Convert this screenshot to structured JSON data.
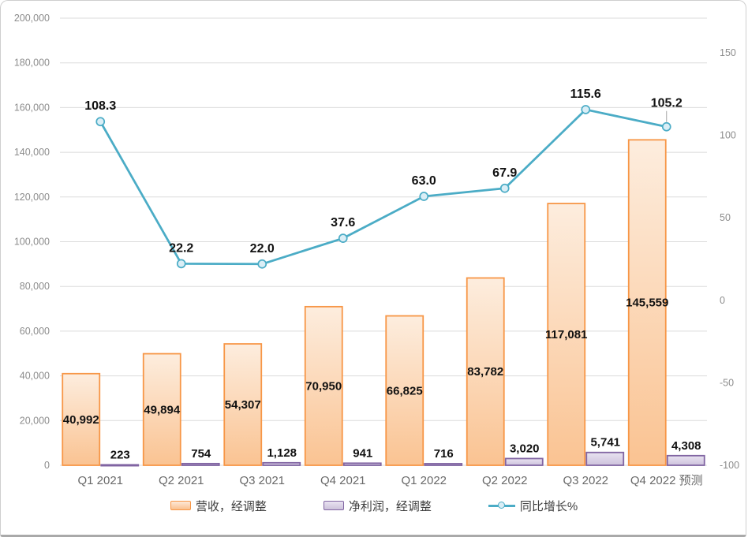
{
  "chart_data": {
    "type": "combo-bar-line",
    "categories": [
      "Q1 2021",
      "Q2 2021",
      "Q3 2021",
      "Q4 2021",
      "Q1 2022",
      "Q2 2022",
      "Q3 2022",
      "Q4 2022 预测"
    ],
    "series": [
      {
        "name": "营收，经调整",
        "type": "bar",
        "axis": "left",
        "values": [
          40992,
          49894,
          54307,
          70950,
          66825,
          83782,
          117081,
          145559
        ],
        "labels": [
          "40,992",
          "49,894",
          "54,307",
          "70,950",
          "66,825",
          "83,782",
          "117,081",
          "145,559"
        ],
        "fill_top": "#FDEDDE",
        "fill_bottom": "#FAC392",
        "border": "#F79646"
      },
      {
        "name": "净利润，经调整",
        "type": "bar",
        "axis": "left",
        "values": [
          223,
          754,
          1128,
          941,
          716,
          3020,
          5741,
          4308
        ],
        "labels": [
          "223",
          "754",
          "1,128",
          "941",
          "716",
          "3,020",
          "5,741",
          "4,308"
        ],
        "fill_top": "#E9E3F1",
        "fill_bottom": "#CDC2DC",
        "border": "#8064A2"
      },
      {
        "name": "同比增长%",
        "type": "line",
        "axis": "right",
        "values": [
          108.3,
          22.2,
          22.0,
          37.6,
          63.0,
          67.9,
          115.6,
          105.2
        ],
        "labels": [
          "108.3",
          "22.2",
          "22.0",
          "37.6",
          "63.0",
          "67.9",
          "115.6",
          "105.2"
        ],
        "color": "#4BACC6",
        "marker_fill": "#DAEEF6",
        "leader_line_color": "#A6A6A6"
      }
    ],
    "left_axis": {
      "min": 0,
      "max": 200000,
      "step": 20000,
      "tick_labels": [
        "0",
        "20,000",
        "40,000",
        "60,000",
        "80,000",
        "100,000",
        "120,000",
        "140,000",
        "160,000",
        "180,000",
        "200,000"
      ]
    },
    "right_axis": {
      "min": -100,
      "max": 150,
      "step": 50,
      "tick_labels": [
        "-100",
        "-50",
        "0",
        "50",
        "100",
        "150"
      ]
    },
    "grid": true,
    "gridline_color": "#DBDBDB",
    "tick_label_color": "#8C8C8C",
    "category_label_color": "#696969",
    "data_label_color": "#111111",
    "legend_position": "bottom"
  },
  "legend": {
    "items": [
      {
        "label": "营收，经调整",
        "swatch": "bar-orange"
      },
      {
        "label": "净利润，经调整",
        "swatch": "bar-purple"
      },
      {
        "label": "同比增长%",
        "swatch": "line-teal"
      }
    ]
  }
}
